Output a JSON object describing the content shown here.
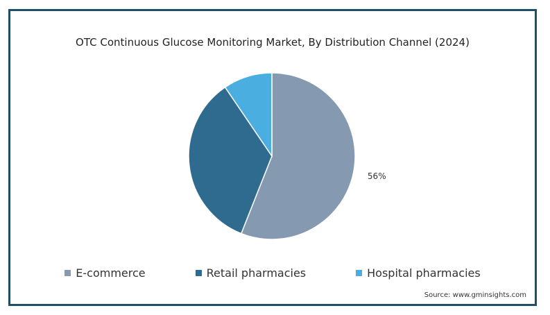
{
  "chart_data": {
    "type": "pie",
    "title": "OTC Continuous Glucose Monitoring Market, By Distribution Channel (2024)",
    "categories": [
      "E-commerce",
      "Retail pharmacies",
      "Hospital pharmacies"
    ],
    "values": [
      56,
      34.5,
      9.5
    ],
    "colors": [
      "#8599b0",
      "#2e6b8e",
      "#4aaee0"
    ],
    "data_labels": [
      "56%",
      "",
      ""
    ],
    "legend_position": "bottom"
  },
  "source": "Source: www.gminsights.com"
}
